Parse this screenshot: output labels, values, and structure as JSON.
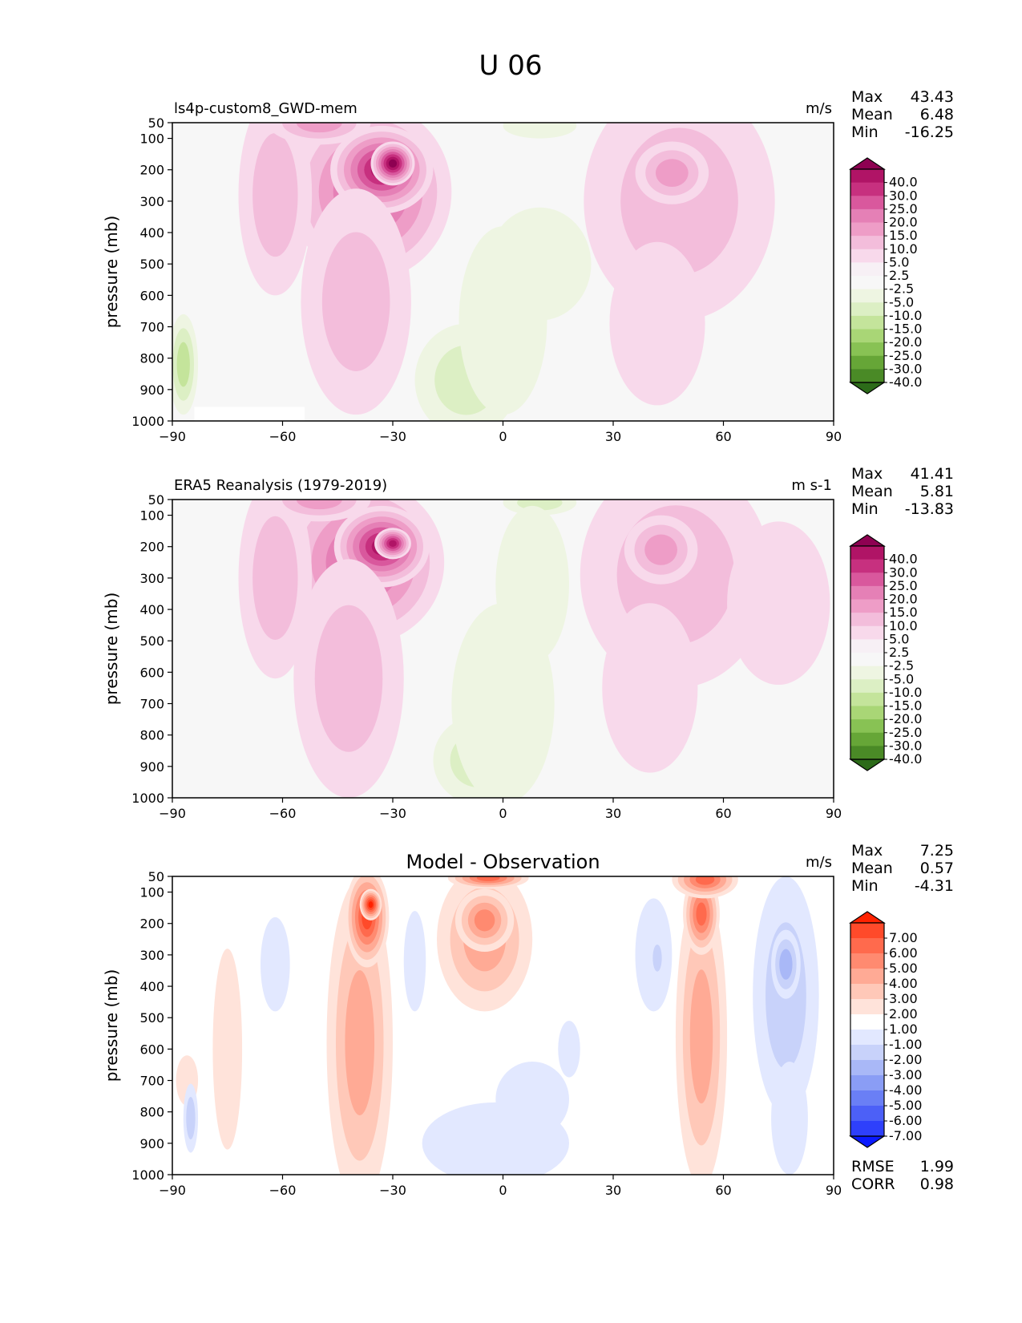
{
  "figure_title": "U 06",
  "chart_data": [
    {
      "type": "contour",
      "id": "model",
      "title": "ls4p-custom8_GWD-mem",
      "units": "m/s",
      "xlabel": "",
      "ylabel": "pressure (mb)",
      "xlim": [
        -90,
        90
      ],
      "ylim": [
        1000,
        50
      ],
      "x_ticks": [
        "−90",
        "−60",
        "−30",
        "0",
        "30",
        "60",
        "90"
      ],
      "y_ticks": [
        "50",
        "100",
        "200",
        "300",
        "400",
        "500",
        "600",
        "700",
        "800",
        "900",
        "1000"
      ],
      "stats": [
        {
          "label": "Max",
          "value": "43.43"
        },
        {
          "label": "Mean",
          "value": "6.48"
        },
        {
          "label": "Min",
          "value": "-16.25"
        }
      ],
      "colorbar_levels": [
        "40.0",
        "30.0",
        "25.0",
        "20.0",
        "15.0",
        "10.0",
        "5.0",
        "2.5",
        "-2.5",
        "-5.0",
        "-10.0",
        "-15.0",
        "-20.0",
        "-25.0",
        "-30.0",
        "-40.0"
      ],
      "colorbar_colors": [
        "#8e0152",
        "#b01466",
        "#c7307f",
        "#d9589d",
        "#e580b6",
        "#ee9dc7",
        "#f3bddb",
        "#f8d9eb",
        "#f7f0f5",
        "#f7f7f7",
        "#eef5e2",
        "#dcefc4",
        "#c4e49b",
        "#a9d676",
        "#88c254",
        "#66a637",
        "#4a8a26",
        "#2c6b19"
      ],
      "blobs": [
        {
          "lon": -36,
          "p": 270,
          "rlon": 22,
          "rp": 280,
          "value": 22
        },
        {
          "lon": -33,
          "p": 200,
          "rlon": 14,
          "rp": 140,
          "value": 33
        },
        {
          "lon": -30,
          "p": 180,
          "rlon": 6,
          "rp": 70,
          "value": 41
        },
        {
          "lon": -40,
          "p": 620,
          "rlon": 15,
          "rp": 360,
          "value": 9
        },
        {
          "lon": -62,
          "p": 280,
          "rlon": 10,
          "rp": 320,
          "value": 8
        },
        {
          "lon": -50,
          "p": 50,
          "rlon": 14,
          "rp": 70,
          "value": 12
        },
        {
          "lon": 48,
          "p": 300,
          "rlon": 26,
          "rp": 380,
          "value": 7
        },
        {
          "lon": 46,
          "p": 210,
          "rlon": 10,
          "rp": 100,
          "value": 11
        },
        {
          "lon": 42,
          "p": 690,
          "rlon": 13,
          "rp": 260,
          "value": 4
        },
        {
          "lon": 70,
          "p": 360,
          "rlon": 14,
          "rp": 240,
          "value": 2
        },
        {
          "lon": 10,
          "p": 60,
          "rlon": 10,
          "rp": 40,
          "value": -4
        },
        {
          "lon": 10,
          "p": 500,
          "rlon": 14,
          "rp": 180,
          "value": -2.5
        },
        {
          "lon": -10,
          "p": 870,
          "rlon": 14,
          "rp": 180,
          "value": -8
        },
        {
          "lon": 0,
          "p": 680,
          "rlon": 12,
          "rp": 300,
          "value": -3
        },
        {
          "lon": -87,
          "p": 820,
          "rlon": 4,
          "rp": 160,
          "value": -10
        }
      ]
    },
    {
      "type": "contour",
      "id": "obs",
      "title": "ERA5 Reanalysis (1979-2019)",
      "units": "m s-1",
      "xlabel": "",
      "ylabel": "pressure (mb)",
      "xlim": [
        -90,
        90
      ],
      "ylim": [
        1000,
        50
      ],
      "x_ticks": [
        "−90",
        "−60",
        "−30",
        "0",
        "30",
        "60",
        "90"
      ],
      "y_ticks": [
        "50",
        "100",
        "200",
        "300",
        "400",
        "500",
        "600",
        "700",
        "800",
        "900",
        "1000"
      ],
      "stats": [
        {
          "label": "Max",
          "value": "41.41"
        },
        {
          "label": "Mean",
          "value": "5.81"
        },
        {
          "label": "Min",
          "value": "-13.83"
        }
      ],
      "colorbar_levels": [
        "40.0",
        "30.0",
        "25.0",
        "20.0",
        "15.0",
        "10.0",
        "5.0",
        "2.5",
        "-2.5",
        "-5.0",
        "-10.0",
        "-15.0",
        "-20.0",
        "-25.0",
        "-30.0",
        "-40.0"
      ],
      "colorbar_colors": [
        "#8e0152",
        "#b01466",
        "#c7307f",
        "#d9589d",
        "#e580b6",
        "#ee9dc7",
        "#f3bddb",
        "#f8d9eb",
        "#f7f0f5",
        "#f7f7f7",
        "#eef5e2",
        "#dcefc4",
        "#c4e49b",
        "#a9d676",
        "#88c254",
        "#66a637",
        "#4a8a26",
        "#2c6b19"
      ],
      "blobs": [
        {
          "lon": -38,
          "p": 250,
          "rlon": 22,
          "rp": 260,
          "value": 21
        },
        {
          "lon": -33,
          "p": 200,
          "rlon": 13,
          "rp": 130,
          "value": 30
        },
        {
          "lon": -30,
          "p": 190,
          "rlon": 5,
          "rp": 50,
          "value": 37
        },
        {
          "lon": -42,
          "p": 620,
          "rlon": 15,
          "rp": 380,
          "value": 9
        },
        {
          "lon": -62,
          "p": 300,
          "rlon": 10,
          "rp": 320,
          "value": 7
        },
        {
          "lon": -50,
          "p": 50,
          "rlon": 14,
          "rp": 70,
          "value": 12
        },
        {
          "lon": 47,
          "p": 290,
          "rlon": 26,
          "rp": 360,
          "value": 7
        },
        {
          "lon": 43,
          "p": 210,
          "rlon": 10,
          "rp": 110,
          "value": 12
        },
        {
          "lon": 40,
          "p": 650,
          "rlon": 13,
          "rp": 270,
          "value": 4
        },
        {
          "lon": 75,
          "p": 380,
          "rlon": 14,
          "rp": 260,
          "value": 3
        },
        {
          "lon": 10,
          "p": 60,
          "rlon": 10,
          "rp": 40,
          "value": -5
        },
        {
          "lon": 8,
          "p": 320,
          "rlon": 10,
          "rp": 250,
          "value": -3
        },
        {
          "lon": -7,
          "p": 880,
          "rlon": 12,
          "rp": 140,
          "value": -8
        },
        {
          "lon": 0,
          "p": 700,
          "rlon": 14,
          "rp": 320,
          "value": -3
        }
      ]
    },
    {
      "type": "contour",
      "id": "diff",
      "title": "Model - Observation",
      "units": "m/s",
      "xlabel": "",
      "ylabel": "pressure (mb)",
      "xlim": [
        -90,
        90
      ],
      "ylim": [
        1000,
        50
      ],
      "x_ticks": [
        "−90",
        "−60",
        "−30",
        "0",
        "30",
        "60",
        "90"
      ],
      "y_ticks": [
        "50",
        "100",
        "200",
        "300",
        "400",
        "500",
        "600",
        "700",
        "800",
        "900",
        "1000"
      ],
      "stats": [
        {
          "label": "Max",
          "value": "7.25"
        },
        {
          "label": "Mean",
          "value": "0.57"
        },
        {
          "label": "Min",
          "value": "-4.31"
        }
      ],
      "extra_stats": [
        {
          "label": "RMSE",
          "value": "1.99"
        },
        {
          "label": "CORR",
          "value": "0.98"
        }
      ],
      "colorbar_levels": [
        "7.00",
        "6.00",
        "5.00",
        "4.00",
        "3.00",
        "2.00",
        "1.00",
        "-1.00",
        "-2.00",
        "-3.00",
        "-4.00",
        "-5.00",
        "-6.00",
        "-7.00"
      ],
      "colorbar_colors": [
        "#ff2200",
        "#ff4a2a",
        "#ff6a4d",
        "#ff8a70",
        "#ffaa95",
        "#ffc8b8",
        "#ffe3da",
        "#ffffff",
        "#e2e8ff",
        "#c8d2fa",
        "#a9b8f7",
        "#8a9df5",
        "#6a7ff5",
        "#4c60f7",
        "#2e40fb",
        "#0a1aff"
      ],
      "blobs": [
        {
          "lon": -39,
          "p": 580,
          "rlon": 9,
          "rp": 520,
          "value": 3.5
        },
        {
          "lon": -37,
          "p": 180,
          "rlon": 6,
          "rp": 160,
          "value": 6
        },
        {
          "lon": -36,
          "p": 140,
          "rlon": 3,
          "rp": 50,
          "value": 7.2
        },
        {
          "lon": -5,
          "p": 250,
          "rlon": 13,
          "rp": 230,
          "value": 3.3
        },
        {
          "lon": -5,
          "p": 190,
          "rlon": 8,
          "rp": 100,
          "value": 4.6
        },
        {
          "lon": -4,
          "p": 55,
          "rlon": 11,
          "rp": 35,
          "value": 5
        },
        {
          "lon": 54,
          "p": 560,
          "rlon": 7,
          "rp": 480,
          "value": 3.4
        },
        {
          "lon": 54,
          "p": 170,
          "rlon": 5,
          "rp": 130,
          "value": 5.5
        },
        {
          "lon": 55,
          "p": 60,
          "rlon": 9,
          "rp": 60,
          "value": 5.5
        },
        {
          "lon": -75,
          "p": 600,
          "rlon": 4,
          "rp": 320,
          "value": 1.6
        },
        {
          "lon": -86,
          "p": 700,
          "rlon": 3,
          "rp": 80,
          "value": 1.4
        },
        {
          "lon": -62,
          "p": 330,
          "rlon": 4,
          "rp": 150,
          "value": -1.4
        },
        {
          "lon": -24,
          "p": 320,
          "rlon": 3,
          "rp": 160,
          "value": -1.2
        },
        {
          "lon": 41,
          "p": 300,
          "rlon": 5,
          "rp": 180,
          "value": -1.8
        },
        {
          "lon": 42,
          "p": 310,
          "rlon": 2,
          "rp": 70,
          "value": -2.4
        },
        {
          "lon": 77,
          "p": 430,
          "rlon": 9,
          "rp": 380,
          "value": -2
        },
        {
          "lon": 77,
          "p": 330,
          "rlon": 4,
          "rp": 110,
          "value": -3.6
        },
        {
          "lon": 78,
          "p": 820,
          "rlon": 5,
          "rp": 180,
          "value": -1.4
        },
        {
          "lon": -2,
          "p": 900,
          "rlon": 20,
          "rp": 130,
          "value": -1.5
        },
        {
          "lon": 8,
          "p": 760,
          "rlon": 10,
          "rp": 120,
          "value": -1.5
        },
        {
          "lon": 18,
          "p": 600,
          "rlon": 3,
          "rp": 90,
          "value": -1.3
        },
        {
          "lon": -85,
          "p": 820,
          "rlon": 2,
          "rp": 110,
          "value": -2.2
        }
      ]
    }
  ]
}
